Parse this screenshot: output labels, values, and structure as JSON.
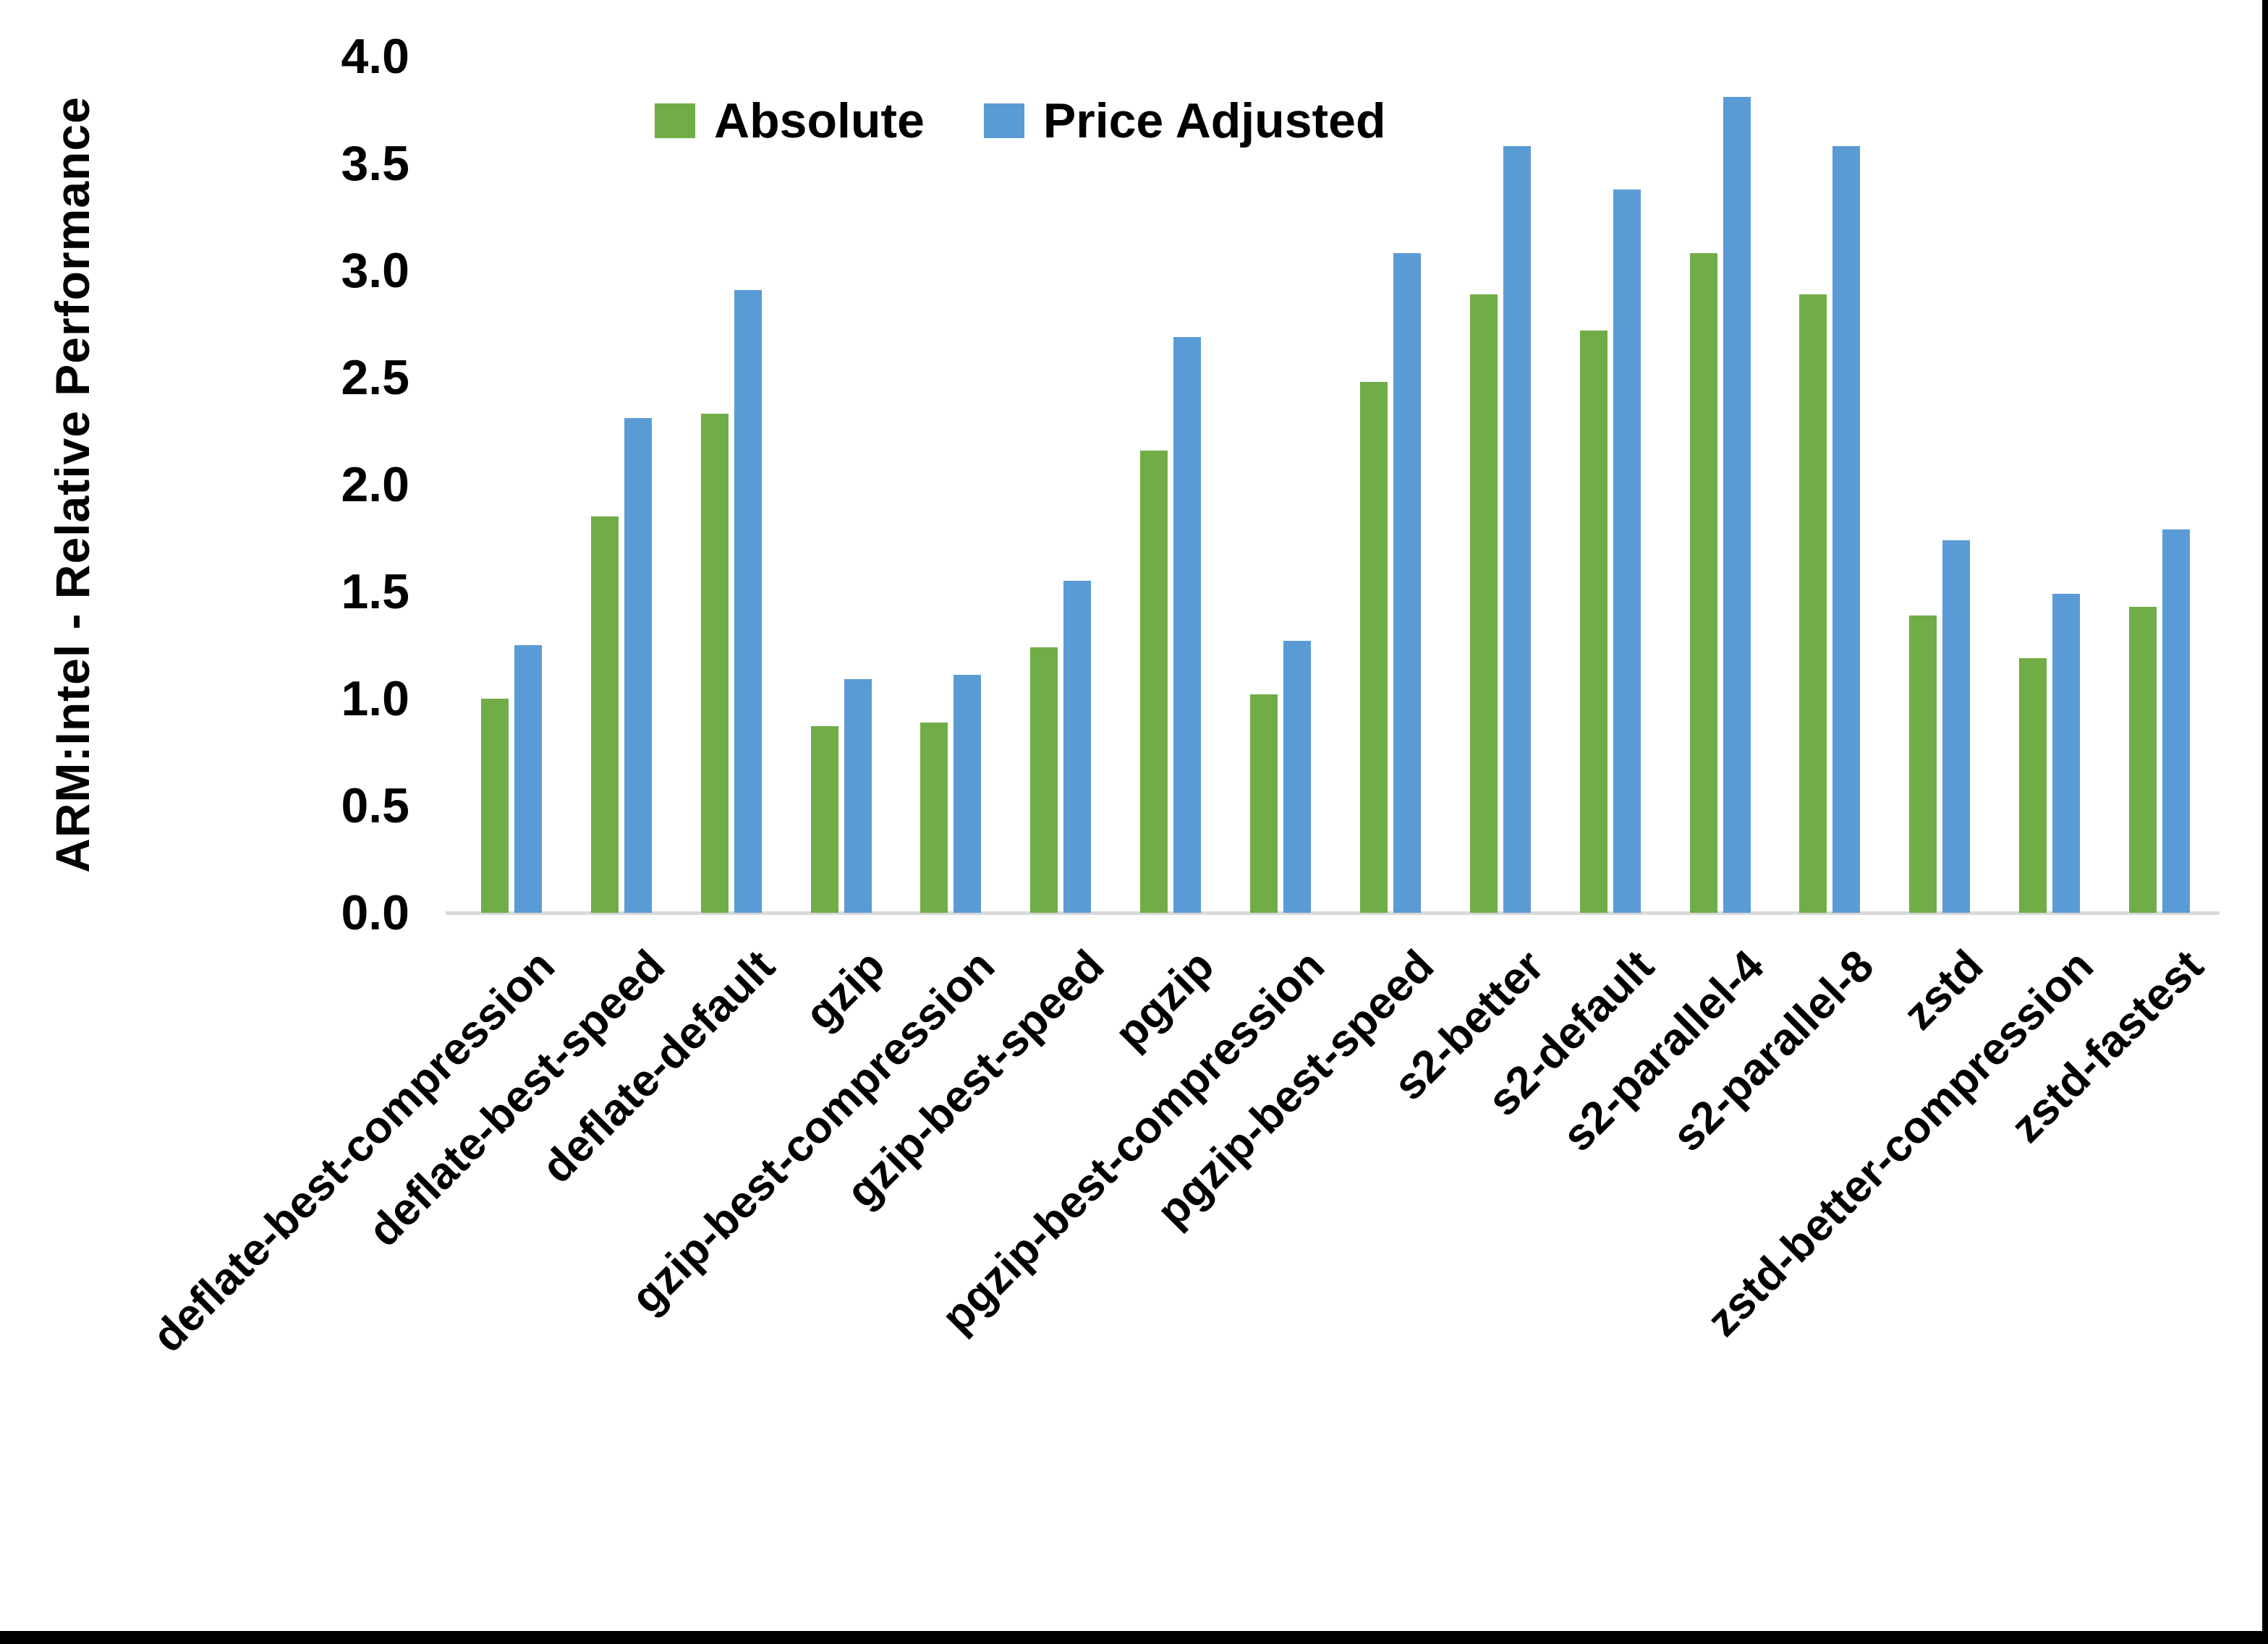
{
  "chart_data": {
    "type": "bar",
    "title": "",
    "xlabel": "",
    "ylabel": "ARM:Intel - Relative Performance",
    "ylim": [
      0,
      4
    ],
    "ytick_step": 0.5,
    "yticks": [
      "4.0",
      "3.5",
      "3.0",
      "2.5",
      "2.0",
      "1.5",
      "1.0",
      "0.5",
      "0.0"
    ],
    "grid": false,
    "legend_position": "top-center",
    "categories": [
      "deflate-best-compression",
      "deflate-best-speed",
      "deflate-default",
      "gzip",
      "gzip-best-compression",
      "gzip-best-speed",
      "pgzip",
      "pgzip-best-compression",
      "pgzip-best-speed",
      "s2-better",
      "s2-default",
      "s2-parallel-4",
      "s2-parallel-8",
      "zstd",
      "zstd-better-compression",
      "zstd-fastest"
    ],
    "series": [
      {
        "name": "Absolute",
        "color": "#70AD47",
        "values": [
          1.0,
          1.85,
          2.33,
          0.87,
          0.89,
          1.24,
          2.16,
          1.02,
          2.48,
          2.89,
          2.72,
          3.08,
          2.89,
          1.39,
          1.19,
          1.43
        ]
      },
      {
        "name": "Price Adjusted",
        "color": "#5B9BD5",
        "values": [
          1.25,
          2.31,
          2.91,
          1.09,
          1.11,
          1.55,
          2.69,
          1.27,
          3.08,
          3.58,
          3.38,
          3.81,
          3.58,
          1.74,
          1.49,
          1.79
        ]
      }
    ],
    "colors": {
      "axis_line": "#d9d9d9",
      "text": "#000000",
      "background": "#ffffff",
      "window_border": "#000000"
    }
  }
}
